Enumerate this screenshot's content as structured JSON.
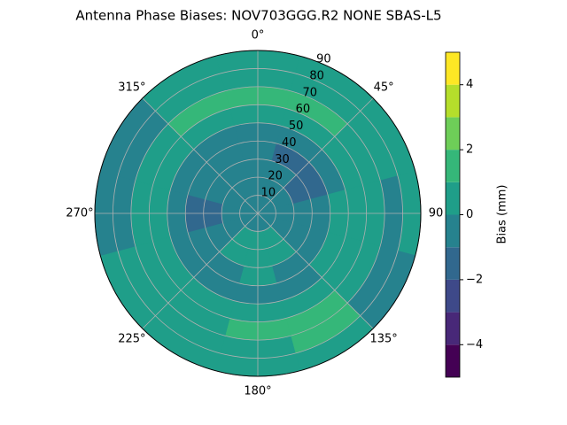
{
  "chart_data": {
    "type": "polar-contour",
    "title": "Antenna Phase Biases: NOV703GGG.R2    NONE SBAS-L5",
    "colorbar_label": "Bias (mm)",
    "x": [
      0,
      30,
      60,
      90,
      120,
      150,
      180,
      210,
      240,
      270,
      300,
      330
    ],
    "r_bins": [
      0,
      10,
      20,
      30,
      40,
      50,
      60,
      70,
      80,
      90
    ],
    "values": [
      [
        -0.5,
        -0.5,
        -0.5,
        -0.5,
        -0.5,
        -0.5,
        -0.5,
        -0.5,
        -0.5,
        -0.5,
        -0.5,
        -0.5
      ],
      [
        -0.5,
        -0.5,
        -0.5,
        -0.5,
        -0.5,
        0.5,
        0.5,
        0.5,
        -0.5,
        -0.5,
        -0.5,
        -0.5
      ],
      [
        -0.5,
        -0.5,
        -1.5,
        -0.5,
        -0.5,
        0.5,
        0.5,
        0.5,
        -0.5,
        -1.5,
        -0.5,
        -0.5
      ],
      [
        -0.5,
        -1.5,
        -1.5,
        -0.5,
        -0.5,
        -0.5,
        0.5,
        -0.5,
        -0.5,
        -1.5,
        -0.5,
        -0.5
      ],
      [
        -0.5,
        -0.5,
        -0.5,
        0.5,
        0.5,
        -0.5,
        -0.5,
        -0.5,
        -0.5,
        -0.5,
        -0.5,
        -0.5
      ],
      [
        0.5,
        0.5,
        0.5,
        0.5,
        0.5,
        0.5,
        0.5,
        0.5,
        0.5,
        0.5,
        0.5,
        0.5
      ],
      [
        1.5,
        1.5,
        0.5,
        0.5,
        0.5,
        1.5,
        1.5,
        0.5,
        0.5,
        0.5,
        0.5,
        1.5
      ],
      [
        0.5,
        0.5,
        0.5,
        -0.5,
        -0.5,
        1.5,
        0.5,
        0.5,
        0.5,
        -0.5,
        -0.5,
        0.5
      ],
      [
        0.5,
        0.5,
        0.5,
        0.5,
        -0.5,
        0.5,
        0.5,
        0.5,
        0.5,
        -0.5,
        -0.5,
        0.5
      ]
    ],
    "levels": [
      -5,
      -4,
      -3,
      -2,
      -1,
      0,
      1,
      2,
      3,
      4,
      5
    ],
    "colors": [
      "#440154",
      "#482878",
      "#3e4989",
      "#31688e",
      "#26828e",
      "#1f9e89",
      "#35b779",
      "#6ece58",
      "#b5de2b",
      "#fde725"
    ],
    "rlim": [
      0,
      90
    ],
    "rticks": [
      10,
      20,
      30,
      40,
      50,
      60,
      70,
      80,
      90
    ],
    "xticks": [
      {
        "value": 0,
        "label": "0°"
      },
      {
        "value": 45,
        "label": "45°"
      },
      {
        "value": 90,
        "label": "90"
      },
      {
        "value": 135,
        "label": "135°"
      },
      {
        "value": 180,
        "label": "180°"
      },
      {
        "value": 225,
        "label": "225°"
      },
      {
        "value": 270,
        "label": "270°"
      },
      {
        "value": 315,
        "label": "315°"
      }
    ],
    "clim": [
      -5,
      5
    ],
    "cticks": [
      {
        "value": -4,
        "label": "−4"
      },
      {
        "value": -2,
        "label": "−2"
      },
      0,
      2,
      4
    ],
    "grid": true
  }
}
